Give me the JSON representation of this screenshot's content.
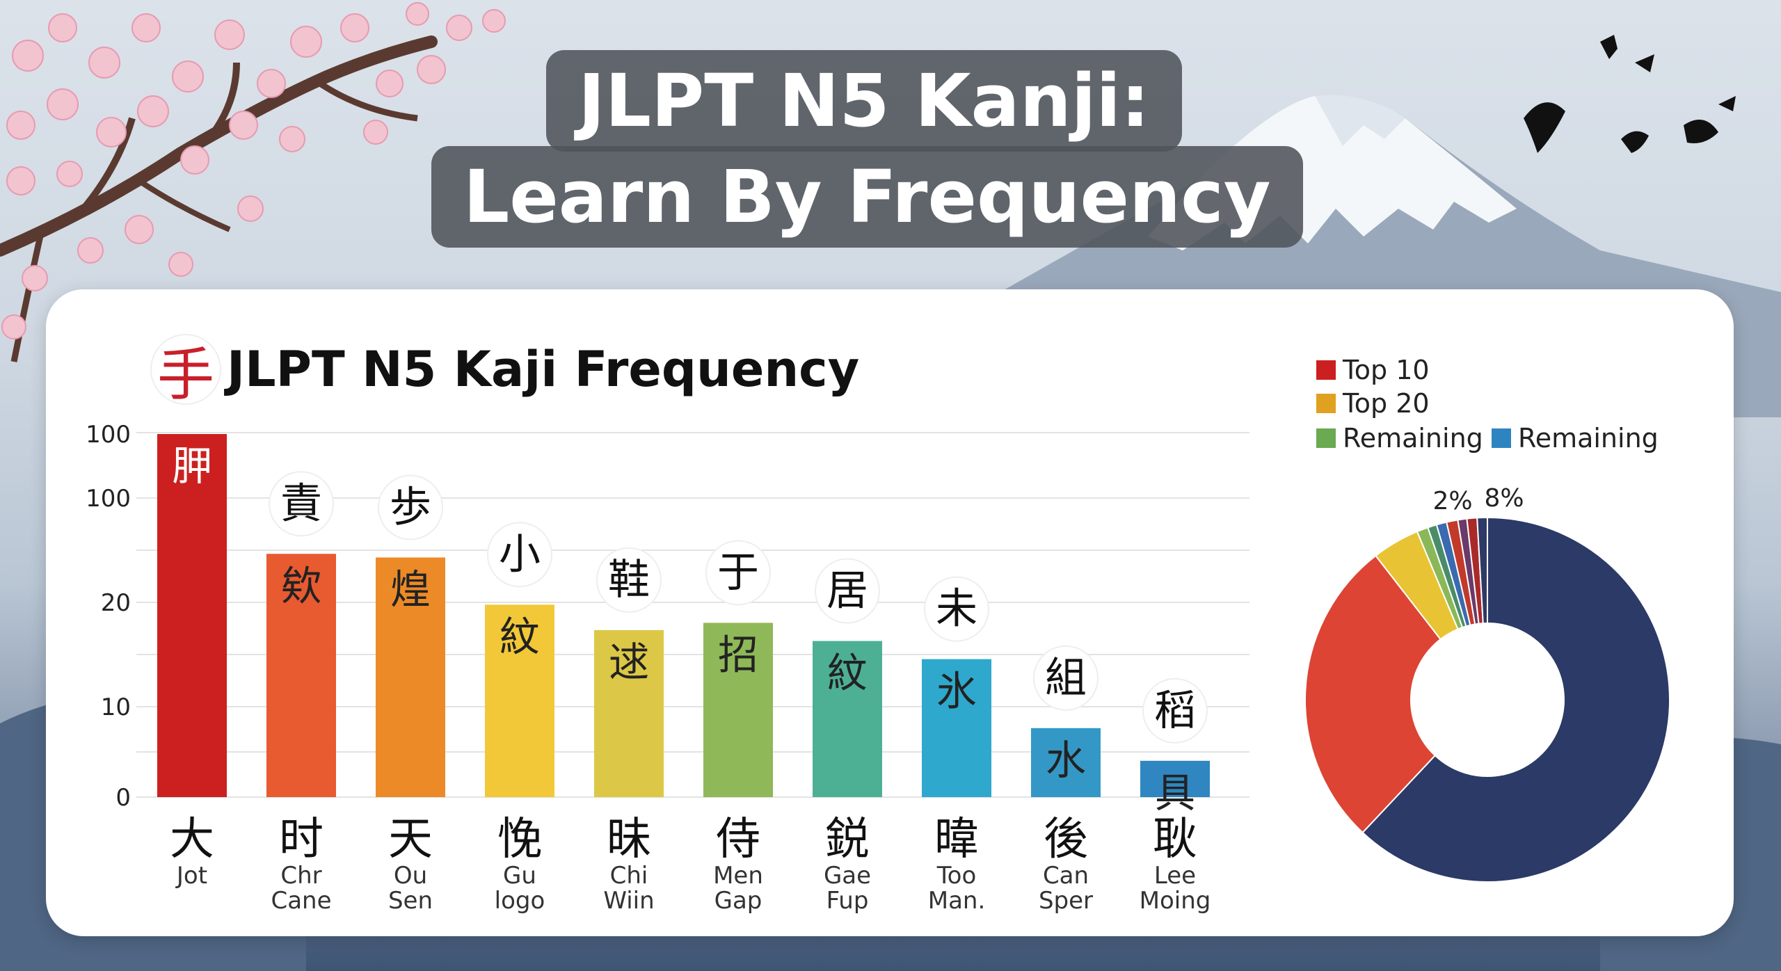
{
  "header": {
    "title_line1": "JLPT N5 Kanji:",
    "title_line2": "Learn By Frequency"
  },
  "chart_title": {
    "logo_glyph": "手",
    "text": "JLPT N5 Kaji Frequency"
  },
  "chart_data": [
    {
      "type": "bar",
      "title": "JLPT N5 Kaji Frequency",
      "y_tick_labels": [
        "0",
        "10",
        "20",
        "100",
        "100"
      ],
      "ylim": [
        0,
        100
      ],
      "grid": true,
      "categories": [
        {
          "kanji": "大",
          "line1": "Jot",
          "line2": "",
          "top_glyph": "",
          "inner_glyph": "胛",
          "color": "#cc2020",
          "value": 100
        },
        {
          "kanji": "时",
          "line1": "Chr",
          "line2": "Cane",
          "top_glyph": "責",
          "inner_glyph": "欸",
          "color": "#e85a30",
          "value": 67
        },
        {
          "kanji": "天",
          "line1": "Ou",
          "line2": "Sen",
          "top_glyph": "歩",
          "inner_glyph": "煌",
          "color": "#ec8a28",
          "value": 66
        },
        {
          "kanji": "悗",
          "line1": "Gu",
          "line2": "logo",
          "top_glyph": "小",
          "inner_glyph": "紋",
          "color": "#f2c838",
          "value": 53
        },
        {
          "kanji": "昧",
          "line1": "Chi",
          "line2": "Wiin",
          "top_glyph": "鞋",
          "inner_glyph": "逑",
          "color": "#dcc846",
          "value": 46
        },
        {
          "kanji": "侍",
          "line1": "Men",
          "line2": "Gap",
          "top_glyph": "于",
          "inner_glyph": "招",
          "color": "#8fb858",
          "value": 48
        },
        {
          "kanji": "鋭",
          "line1": "Gae",
          "line2": "Fup",
          "top_glyph": "居",
          "inner_glyph": "紋",
          "color": "#4db094",
          "value": 43
        },
        {
          "kanji": "暐",
          "line1": "Too",
          "line2": "Man.",
          "top_glyph": "未",
          "inner_glyph": "氷",
          "color": "#2ea8cc",
          "value": 38
        },
        {
          "kanji": "後",
          "line1": "Can",
          "line2": "Sper",
          "top_glyph": "組",
          "inner_glyph": "水",
          "color": "#3498c6",
          "value": 19
        },
        {
          "kanji": "耿",
          "line1": "Lee",
          "line2": "Moing",
          "top_glyph": "稻",
          "inner_glyph": "具",
          "color": "#2f86c0",
          "value": 10
        }
      ]
    },
    {
      "type": "pie",
      "legend_position": "top",
      "legend": [
        {
          "label": "Top 10",
          "color": "#cc2020"
        },
        {
          "label": "Top 20",
          "color": "#e0a020"
        },
        {
          "label": "Remaining",
          "color": "#6aaa50"
        },
        {
          "label": "Remaining",
          "color": "#2e84c0"
        }
      ],
      "slice_labels": [
        "2%",
        "8%"
      ],
      "slices": [
        {
          "value": 62.0,
          "color": "#2b3a66"
        },
        {
          "value": 27.5,
          "color": "#dd4433"
        },
        {
          "value": 4.2,
          "color": "#e8c434"
        },
        {
          "value": 1.0,
          "color": "#8ab858"
        },
        {
          "value": 0.8,
          "color": "#4a8c6a"
        },
        {
          "value": 0.9,
          "color": "#3a6ab0"
        },
        {
          "value": 1.0,
          "color": "#c23a2a"
        },
        {
          "value": 0.8,
          "color": "#6a3a6a"
        },
        {
          "value": 0.9,
          "color": "#aa2a2a"
        },
        {
          "value": 0.9,
          "color": "#2e3a66"
        }
      ]
    }
  ]
}
